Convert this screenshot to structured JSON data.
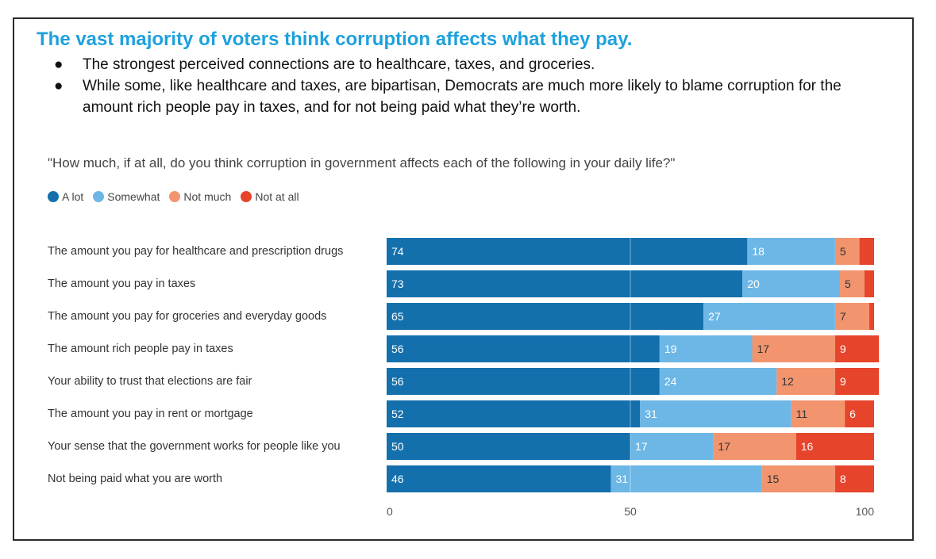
{
  "title": "The vast majority of voters think corruption affects what they pay.",
  "bullets": [
    "The strongest perceived connections are to healthcare, taxes, and groceries.",
    "While some, like healthcare and taxes, are bipartisan, Democrats are much more likely to blame corruption for the amount rich people pay in taxes, and for not being paid what they’re worth."
  ],
  "bullet_symbol": "●",
  "question": "\"How much, if at all, do you think corruption in government affects each of the following in your daily life?\"",
  "colors": {
    "title": "#1ea1dc",
    "a_lot": "#1370ad",
    "somewhat": "#6cb7e6",
    "not_much": "#f2956f",
    "not_at_all": "#e6452b"
  },
  "chart_data": {
    "type": "bar",
    "orientation": "horizontal",
    "stacked": true,
    "categories": [
      "The amount you pay for healthcare and prescription drugs",
      "The amount you pay in taxes",
      "The amount you pay for groceries and everyday goods",
      "The amount rich people pay in taxes",
      "Your ability to trust that elections are fair",
      "The amount you pay in rent or mortgage",
      "Your sense that the government works for people like you",
      "Not being paid what you are worth"
    ],
    "series": [
      {
        "name": "A lot",
        "color": "#1370ad",
        "values": [
          74,
          73,
          65,
          56,
          56,
          52,
          50,
          46
        ]
      },
      {
        "name": "Somewhat",
        "color": "#6cb7e6",
        "values": [
          18,
          20,
          27,
          19,
          24,
          31,
          17,
          31
        ]
      },
      {
        "name": "Not much",
        "color": "#f2956f",
        "values": [
          5,
          5,
          7,
          17,
          12,
          11,
          17,
          15
        ]
      },
      {
        "name": "Not at all",
        "color": "#e6452b",
        "values": [
          3,
          2,
          1,
          9,
          9,
          6,
          16,
          8
        ]
      }
    ],
    "labels_shown": [
      [
        "74",
        "18",
        "5",
        ""
      ],
      [
        "73",
        "20",
        "5",
        ""
      ],
      [
        "65",
        "27",
        "7",
        ""
      ],
      [
        "56",
        "19",
        "17",
        "9"
      ],
      [
        "56",
        "24",
        "12",
        "9"
      ],
      [
        "52",
        "31",
        "11",
        "6"
      ],
      [
        "50",
        "17",
        "17",
        "16"
      ],
      [
        "46",
        "31",
        "15",
        "8"
      ]
    ],
    "xlim": [
      0,
      100
    ],
    "xticks": [
      "0",
      "50",
      "100"
    ],
    "legend_position": "top-left"
  }
}
